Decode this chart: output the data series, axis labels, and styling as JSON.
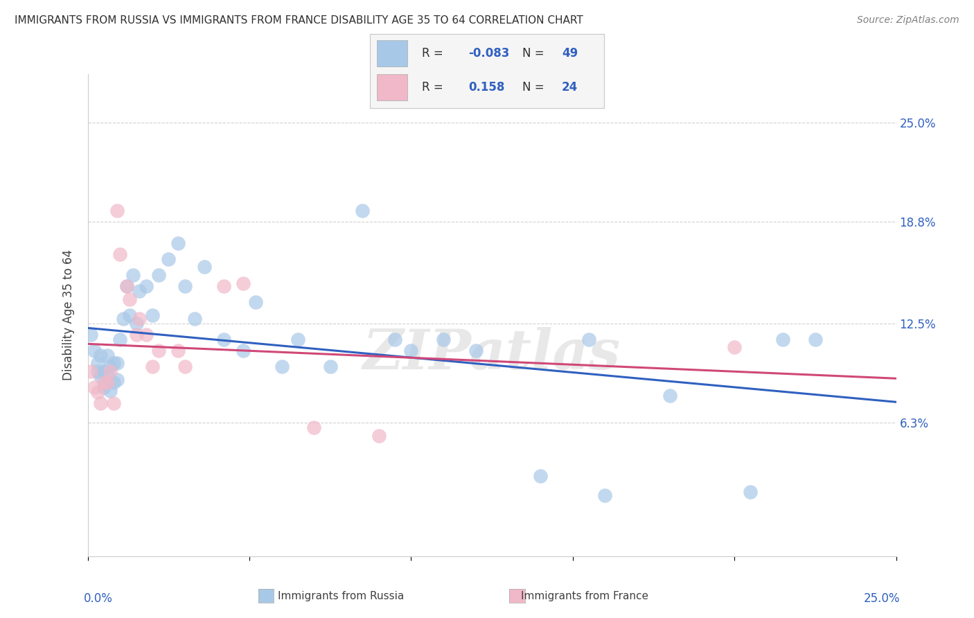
{
  "title": "IMMIGRANTS FROM RUSSIA VS IMMIGRANTS FROM FRANCE DISABILITY AGE 35 TO 64 CORRELATION CHART",
  "source": "Source: ZipAtlas.com",
  "ylabel": "Disability Age 35 to 64",
  "ytick_labels": [
    "25.0%",
    "18.8%",
    "12.5%",
    "6.3%"
  ],
  "ytick_values": [
    0.25,
    0.188,
    0.125,
    0.063
  ],
  "xlim": [
    0.0,
    0.25
  ],
  "ylim": [
    -0.02,
    0.28
  ],
  "legend_russia_R": "-0.083",
  "legend_russia_N": "49",
  "legend_france_R": "0.158",
  "legend_france_N": "24",
  "russia_color": "#a8c8e8",
  "russia_line_color": "#3060c0",
  "france_color": "#f0b8c8",
  "france_line_color": "#d04878",
  "russia_x": [
    0.001,
    0.002,
    0.003,
    0.003,
    0.004,
    0.004,
    0.005,
    0.005,
    0.006,
    0.006,
    0.007,
    0.007,
    0.008,
    0.008,
    0.009,
    0.009,
    0.01,
    0.011,
    0.012,
    0.013,
    0.014,
    0.015,
    0.016,
    0.018,
    0.02,
    0.022,
    0.025,
    0.028,
    0.03,
    0.033,
    0.036,
    0.042,
    0.048,
    0.052,
    0.06,
    0.065,
    0.075,
    0.085,
    0.095,
    0.1,
    0.11,
    0.12,
    0.14,
    0.155,
    0.16,
    0.18,
    0.205,
    0.215,
    0.225
  ],
  "russia_y": [
    0.118,
    0.108,
    0.1,
    0.095,
    0.092,
    0.105,
    0.085,
    0.095,
    0.092,
    0.105,
    0.083,
    0.098,
    0.088,
    0.1,
    0.09,
    0.1,
    0.115,
    0.128,
    0.148,
    0.13,
    0.155,
    0.125,
    0.145,
    0.148,
    0.13,
    0.155,
    0.165,
    0.175,
    0.148,
    0.128,
    0.16,
    0.115,
    0.108,
    0.138,
    0.098,
    0.115,
    0.098,
    0.195,
    0.115,
    0.108,
    0.115,
    0.108,
    0.03,
    0.115,
    0.018,
    0.08,
    0.02,
    0.115,
    0.115
  ],
  "france_x": [
    0.001,
    0.002,
    0.003,
    0.004,
    0.005,
    0.006,
    0.007,
    0.008,
    0.009,
    0.01,
    0.012,
    0.013,
    0.015,
    0.016,
    0.018,
    0.02,
    0.022,
    0.028,
    0.03,
    0.042,
    0.048,
    0.07,
    0.09,
    0.2
  ],
  "france_y": [
    0.095,
    0.085,
    0.082,
    0.075,
    0.088,
    0.088,
    0.095,
    0.075,
    0.195,
    0.168,
    0.148,
    0.14,
    0.118,
    0.128,
    0.118,
    0.098,
    0.108,
    0.108,
    0.098,
    0.148,
    0.15,
    0.06,
    0.055,
    0.11
  ],
  "watermark": "ZIPatlas",
  "background_color": "#ffffff",
  "grid_color": "#d0d0d0"
}
